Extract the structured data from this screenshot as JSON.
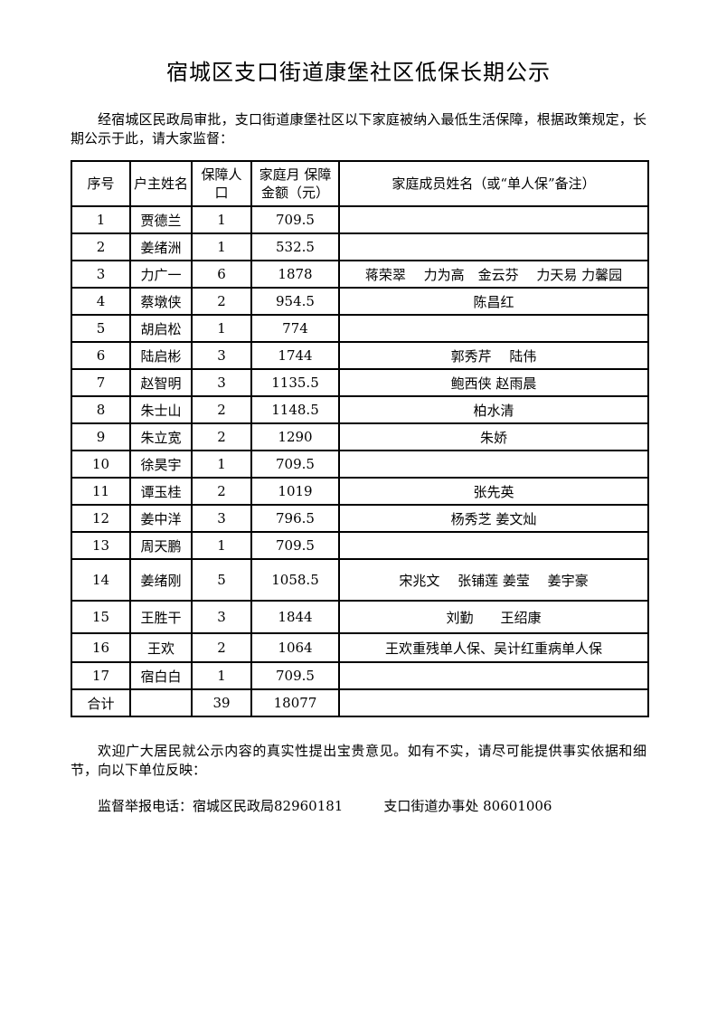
{
  "page": {
    "title": "宿城区支口街道康堡社区低保长期公示",
    "intro": "经宿城区民政局审批，支口街道康堡社区以下家庭被纳入最低生活保障，根据政策规定，长期公示于此，请大家监督：",
    "footer_note": "欢迎广大居民就公示内容的真实性提出宝贵意见。如有不实，请尽可能提供事实依据和细节，向以下单位反映：",
    "hotline": "监督举报电话：宿城区民政局82960181　　　支口街道办事处 80601006"
  },
  "table": {
    "headers": [
      "序号",
      "户主姓名",
      "保障人口",
      "家庭月 保障金额（元）",
      "家庭成员姓名（或“单人保”备注）"
    ],
    "rows": [
      [
        "1",
        "贾德兰",
        "1",
        "709.5",
        ""
      ],
      [
        "2",
        "姜绪洲",
        "1",
        "532.5",
        ""
      ],
      [
        "3",
        "力广一",
        "6",
        "1878",
        "蒋荣翠　 力为高　金云芬　 力天易 力馨园"
      ],
      [
        "4",
        "蔡墩侠",
        "2",
        "954.5",
        "陈昌红"
      ],
      [
        "5",
        "胡启松",
        "1",
        "774",
        ""
      ],
      [
        "6",
        "陆启彬",
        "3",
        "1744",
        "郭秀芹　 陆伟"
      ],
      [
        "7",
        "赵智明",
        "3",
        "1135.5",
        "鲍西侠 赵雨晨"
      ],
      [
        "8",
        "朱士山",
        "2",
        "1148.5",
        "柏水清"
      ],
      [
        "9",
        "朱立宽",
        "2",
        "1290",
        "朱娇"
      ],
      [
        "10",
        "徐昊宇",
        "1",
        "709.5",
        ""
      ],
      [
        "11",
        "谭玉桂",
        "2",
        "1019",
        "张先英"
      ],
      [
        "12",
        "姜中洋",
        "3",
        "796.5",
        "杨秀芝 姜文灿"
      ],
      [
        "13",
        "周天鹏",
        "1",
        "709.5",
        ""
      ],
      [
        "14",
        "姜绪刚",
        "5",
        "1058.5",
        "宋兆文　 张铺莲 姜莹　 姜宇豪"
      ],
      [
        "15",
        "王胜干",
        "3",
        "1844",
        "刘勤　　王绍康"
      ],
      [
        "16",
        "王欢",
        "2",
        "1064",
        "王欢重残单人保、吴计红重病单人保"
      ],
      [
        "17",
        "宿白白",
        "1",
        "709.5",
        ""
      ],
      [
        "合计",
        "",
        "39",
        "18077",
        ""
      ]
    ]
  }
}
